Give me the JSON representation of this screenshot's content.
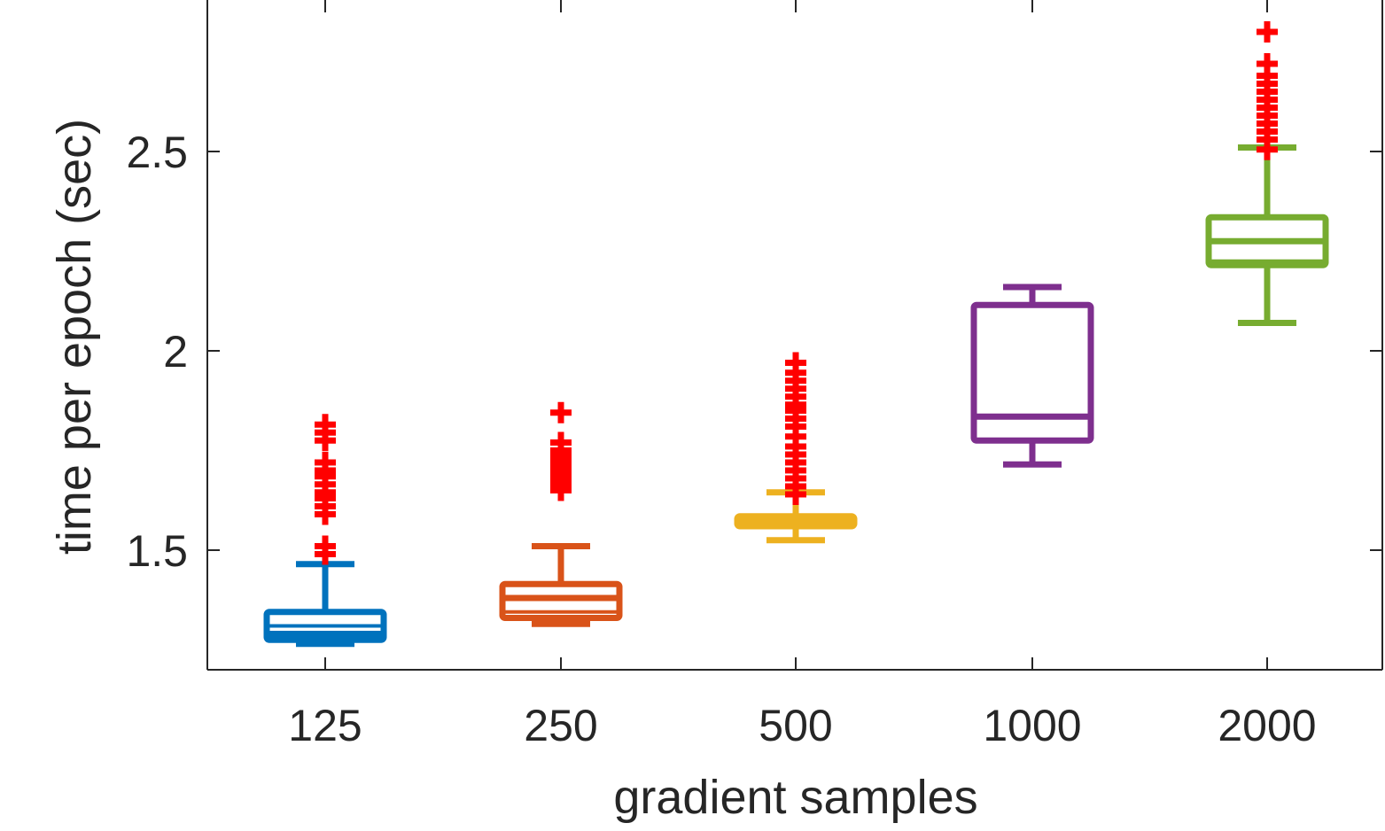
{
  "chart_data": {
    "type": "box",
    "title": "",
    "xlabel": "gradient samples",
    "ylabel": "time per epoch (sec)",
    "categories": [
      "125",
      "250",
      "500",
      "1000",
      "2000"
    ],
    "ylim": [
      1.2,
      2.88
    ],
    "yticks": [
      1.5,
      2,
      2.5
    ],
    "ytick_labels": [
      "1.5",
      "2",
      "2.5"
    ],
    "grid": false,
    "legend": "none",
    "boxes": [
      {
        "category": "125",
        "color": "#0072BD",
        "whisker_low": 1.265,
        "q1": 1.275,
        "median": 1.29,
        "q3": 1.345,
        "whisker_high": 1.465,
        "mean": 1.31,
        "outliers": [
          1.49,
          1.51,
          1.59,
          1.61,
          1.63,
          1.645,
          1.665,
          1.685,
          1.7,
          1.72,
          1.775,
          1.795,
          1.815
        ]
      },
      {
        "category": "250",
        "color": "#D95319",
        "whisker_low": 1.315,
        "q1": 1.33,
        "median": 1.38,
        "q3": 1.415,
        "whisker_high": 1.51,
        "mean": 1.345,
        "outliers": [
          1.65,
          1.66,
          1.675,
          1.69,
          1.705,
          1.72,
          1.735,
          1.75,
          1.77,
          1.845
        ]
      },
      {
        "category": "500",
        "color": "#EDB120",
        "whisker_low": 1.525,
        "q1": 1.56,
        "median": 1.575,
        "q3": 1.585,
        "whisker_high": 1.645,
        "mean": 1.565,
        "outliers": [
          1.64,
          1.66,
          1.68,
          1.7,
          1.72,
          1.74,
          1.76,
          1.785,
          1.81,
          1.83,
          1.85,
          1.865,
          1.885,
          1.905,
          1.925,
          1.945,
          1.97
        ]
      },
      {
        "category": "1000",
        "color": "#7E2F8E",
        "whisker_low": 1.715,
        "q1": 1.775,
        "median": 1.835,
        "q3": 2.115,
        "whisker_high": 2.16,
        "outliers": []
      },
      {
        "category": "2000",
        "color": "#77AC30",
        "whisker_low": 2.07,
        "q1": 2.215,
        "median": 2.275,
        "q3": 2.335,
        "whisker_high": 2.51,
        "mean": 2.225,
        "outliers": [
          2.505,
          2.53,
          2.55,
          2.57,
          2.59,
          2.61,
          2.63,
          2.65,
          2.67,
          2.69,
          2.72,
          2.8
        ]
      }
    ],
    "outlier_color": "#FF0000",
    "outlier_marker": "+"
  }
}
